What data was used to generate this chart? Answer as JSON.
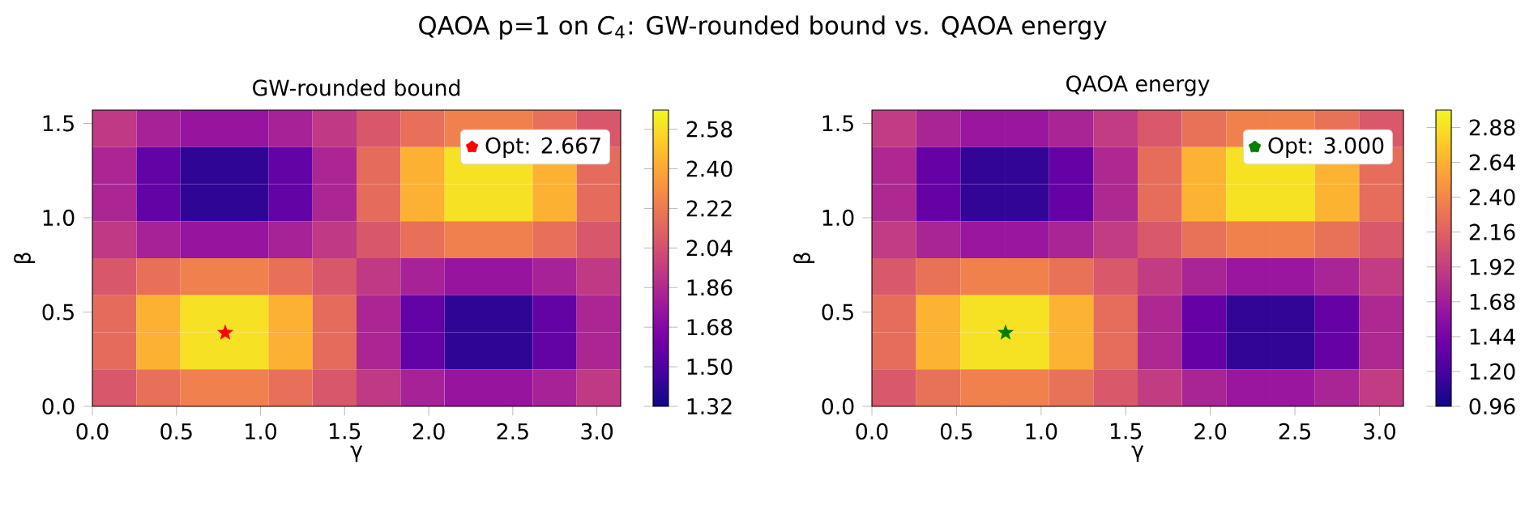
{
  "chart_data": [
    {
      "type": "heatmap",
      "title": "GW-rounded bound",
      "xlabel": "γ",
      "ylabel": "β",
      "annotations": [
        "QAOA p=1 on *C*$_{4}$: GW-rounded bound vs. QAOA energy"
      ],
      "xlim": [
        0,
        3.1416
      ],
      "ylim": [
        0,
        1.5708
      ],
      "xticks": [
        {
          "value": 0,
          "label": "0.0"
        },
        {
          "value": 0.5,
          "label": "0.5"
        },
        {
          "value": 1,
          "label": "1.0"
        },
        {
          "value": 1.5,
          "label": "1.5"
        },
        {
          "value": 2,
          "label": "2.0"
        },
        {
          "value": 2.5,
          "label": "2.5"
        },
        {
          "value": 3,
          "label": "3.0"
        }
      ],
      "yticks": [
        {
          "value": 0,
          "label": "0.0"
        },
        {
          "value": 0.5,
          "label": "0.5"
        },
        {
          "value": 1,
          "label": "1.0"
        },
        {
          "value": 1.5,
          "label": "1.5"
        }
      ],
      "clim": [
        1.32,
        2.667
      ],
      "cticks": [
        1.32,
        {
          "value": 1.5,
          "label": "1.50"
        },
        1.68,
        1.86,
        2.04,
        2.22,
        {
          "value": 2.4,
          "label": "2.40"
        },
        2.58
      ],
      "cells": [
        [
          1.93,
          1.82,
          1.75,
          1.75,
          1.82,
          1.93,
          2.07,
          2.18,
          2.25,
          2.25,
          2.18,
          2.07
        ],
        [
          1.84,
          1.57,
          1.41,
          1.41,
          1.57,
          1.84,
          2.16,
          2.43,
          2.59,
          2.59,
          2.43,
          2.16
        ],
        [
          1.84,
          1.57,
          1.41,
          1.41,
          1.57,
          1.84,
          2.16,
          2.43,
          2.59,
          2.59,
          2.43,
          2.16
        ],
        [
          1.93,
          1.82,
          1.75,
          1.75,
          1.82,
          1.93,
          2.07,
          2.18,
          2.25,
          2.25,
          2.18,
          2.07
        ],
        [
          2.07,
          2.18,
          2.25,
          2.25,
          2.18,
          2.07,
          1.93,
          1.82,
          1.75,
          1.75,
          1.82,
          1.93
        ],
        [
          2.16,
          2.43,
          2.59,
          2.59,
          2.43,
          2.16,
          1.84,
          1.57,
          1.41,
          1.41,
          1.57,
          1.84
        ],
        [
          2.16,
          2.43,
          2.59,
          2.59,
          2.43,
          2.16,
          1.84,
          1.57,
          1.41,
          1.41,
          1.57,
          1.84
        ],
        [
          2.07,
          2.18,
          2.25,
          2.25,
          2.18,
          2.07,
          1.93,
          1.82,
          1.75,
          1.75,
          1.82,
          1.93
        ]
      ],
      "series": [
        {
          "type": "scatter",
          "name": "Opt: 2.667",
          "color": "#ff0000",
          "x": [
            0.79
          ],
          "values": [
            0.39
          ]
        }
      ],
      "marker": "star",
      "legend": "top right"
    },
    {
      "type": "heatmap",
      "title": "QAOA energy",
      "xlabel": "γ",
      "ylabel": "β",
      "xlim": [
        0,
        3.1416
      ],
      "ylim": [
        0,
        1.5708
      ],
      "xticks": [
        {
          "value": 0,
          "label": "0.0"
        },
        {
          "value": 0.5,
          "label": "0.5"
        },
        {
          "value": 1,
          "label": "1.0"
        },
        {
          "value": 1.5,
          "label": "1.5"
        },
        {
          "value": 2,
          "label": "2.0"
        },
        {
          "value": 2.5,
          "label": "2.5"
        },
        {
          "value": 3,
          "label": "3.0"
        }
      ],
      "yticks": [
        {
          "value": 0,
          "label": "0.0"
        },
        {
          "value": 0.5,
          "label": "0.5"
        },
        {
          "value": 1,
          "label": "1.0"
        },
        {
          "value": 1.5,
          "label": "1.5"
        }
      ],
      "clim": [
        0.96,
        3.0
      ],
      "cticks": [
        0.96,
        {
          "value": 1.2,
          "label": "1.20"
        },
        1.44,
        1.68,
        1.92,
        2.16,
        {
          "value": 2.4,
          "label": "2.40"
        },
        2.64,
        2.88
      ],
      "cells": [
        [
          1.9,
          1.73,
          1.63,
          1.63,
          1.73,
          1.9,
          2.1,
          2.27,
          2.37,
          2.37,
          2.27,
          2.1
        ],
        [
          1.76,
          1.35,
          1.11,
          1.11,
          1.35,
          1.76,
          2.24,
          2.65,
          2.89,
          2.89,
          2.65,
          2.24
        ],
        [
          1.76,
          1.35,
          1.11,
          1.11,
          1.35,
          1.76,
          2.24,
          2.65,
          2.89,
          2.89,
          2.65,
          2.24
        ],
        [
          1.9,
          1.73,
          1.63,
          1.63,
          1.73,
          1.9,
          2.1,
          2.27,
          2.37,
          2.37,
          2.27,
          2.1
        ],
        [
          2.1,
          2.27,
          2.37,
          2.37,
          2.27,
          2.1,
          1.9,
          1.73,
          1.63,
          1.63,
          1.73,
          1.9
        ],
        [
          2.24,
          2.65,
          2.89,
          2.89,
          2.65,
          2.24,
          1.76,
          1.35,
          1.11,
          1.11,
          1.35,
          1.76
        ],
        [
          2.24,
          2.65,
          2.89,
          2.89,
          2.65,
          2.24,
          1.76,
          1.35,
          1.11,
          1.11,
          1.35,
          1.76
        ],
        [
          2.1,
          2.27,
          2.37,
          2.37,
          2.27,
          2.1,
          1.9,
          1.73,
          1.63,
          1.63,
          1.73,
          1.9
        ]
      ],
      "series": [
        {
          "type": "scatter",
          "name": "Opt: 3.000",
          "color": "#008000",
          "x": [
            0.79
          ],
          "values": [
            0.39
          ]
        }
      ],
      "marker": "star",
      "legend": "top right"
    }
  ]
}
